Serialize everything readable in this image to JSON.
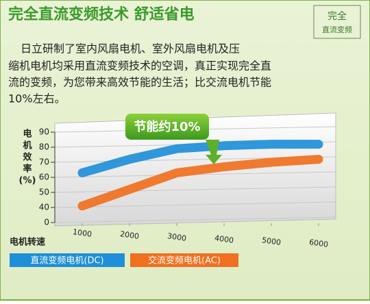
{
  "badge": [
    "完全",
    "直流变频"
  ],
  "description": [
    "日立研制了室内风扇电机、室外风扇电机及压",
    "缩机电机均采用直流变频技术的空调，真正实现完全直",
    "流的变频，为您带来高效节能的生活；比交流电机节能",
    "10%左右。"
  ],
  "chart_data": {
    "type": "line",
    "title": "完全直流变频技术 舒适省电",
    "y_label": [
      "电",
      "机",
      "效",
      "率",
      "(%)"
    ],
    "x_label": "电机转速",
    "annotation": "节能约10%",
    "x": [
      1000,
      2000,
      3000,
      4000,
      5000,
      6000
    ],
    "xlim": [
      1000,
      6000
    ],
    "xticks": [
      1000,
      2000,
      3000,
      4000,
      5000,
      6000
    ],
    "ylim": [
      0,
      90
    ],
    "yticks": [
      0,
      40,
      50,
      60,
      70,
      80,
      90
    ],
    "grid": true,
    "series": [
      {
        "name": "直流变频电机(DC)",
        "color": "#1e8fd8",
        "values": [
          63,
          72,
          79,
          81,
          82,
          82
        ]
      },
      {
        "name": "交流变频电机(AC)",
        "color": "#f07020",
        "values": [
          41,
          52,
          63,
          67,
          70,
          72
        ]
      }
    ]
  }
}
